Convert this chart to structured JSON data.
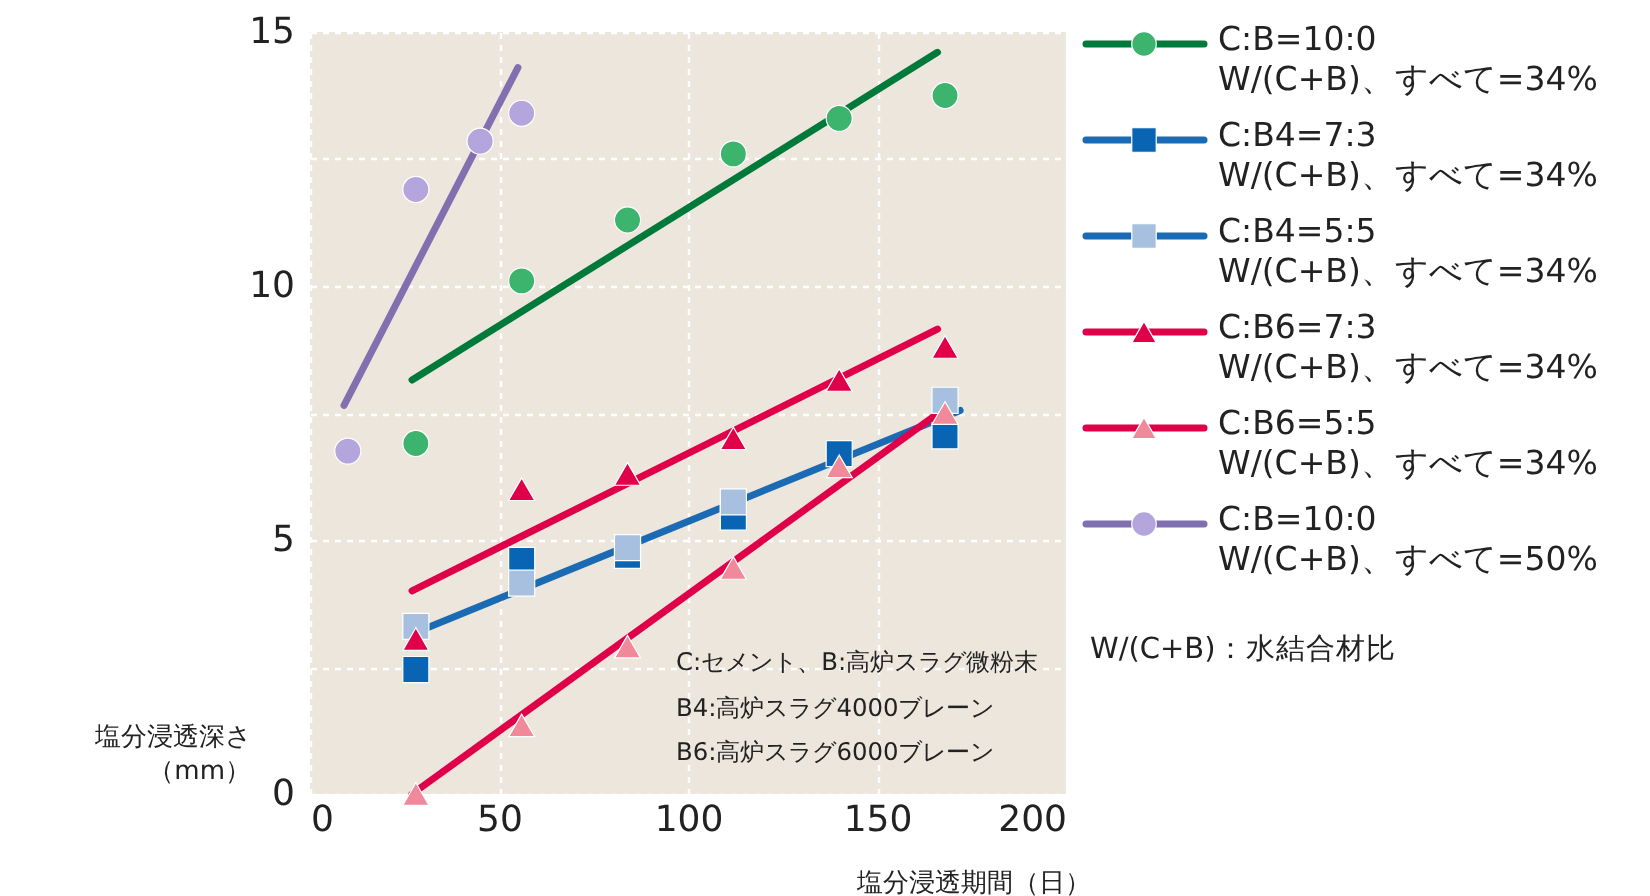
{
  "chart_data": {
    "type": "scatter",
    "xlabel": "塩分浸透期間（日）",
    "ylabel": "塩分浸透深さ（mm）",
    "xlim": [
      0,
      200
    ],
    "xticks": [
      0,
      50,
      100,
      150,
      200
    ],
    "ylim": [
      0,
      15
    ],
    "yticks": [
      0,
      {
        "value": 2.5,
        "label": null
      },
      5,
      {
        "value": 7.5,
        "label": null
      },
      10,
      {
        "value": 12.5,
        "label": null
      },
      15
    ],
    "grid": true,
    "legend": "right",
    "annotations": [
      "C:セメント、B:高炉スラグ微粉末",
      "B4:高炉スラグ4000ブレーン",
      "B6:高炉スラグ6000ブレーン",
      "W/(C+B)：水結合材比"
    ],
    "series": [
      {
        "name": "C:B=10:0\nW/(C+B)、すべて=34%",
        "color": "#3cb46e",
        "marker": "circle",
        "x": [
          28,
          56,
          84,
          112,
          140,
          168
        ],
        "values": [
          6.9,
          10.1,
          11.3,
          12.6,
          13.3,
          13.75
        ]
      },
      {
        "name": "C:B4=7:3\nW/(C+B)、すべて=34%",
        "color": "#0a64b4",
        "marker": "square",
        "x": [
          28,
          56,
          84,
          112,
          140,
          168
        ],
        "values": [
          2.45,
          4.6,
          4.7,
          5.45,
          6.7,
          7.05
        ]
      },
      {
        "name": "C:B4=5:5\nW/(C+B)、すべて=34%",
        "color": "#a8c0e0",
        "marker": "square",
        "x": [
          28,
          56,
          84,
          112,
          140,
          168
        ],
        "values": [
          3.3,
          4.15,
          4.85,
          5.75,
          null,
          7.75
        ]
      },
      {
        "name": "C:B6=7:3\nW/(C+B)、すべて=34%",
        "color": "#e0004a",
        "marker": "triangle",
        "x": [
          28,
          56,
          84,
          112,
          140,
          168
        ],
        "values": [
          3.05,
          6.0,
          6.3,
          7.0,
          8.15,
          8.8
        ]
      },
      {
        "name": "C:B6=5:5\nW/(C+B)、すべて=34%",
        "color": "#f08a9a",
        "marker": "triangle",
        "x": [
          28,
          56,
          84,
          112,
          140,
          168
        ],
        "values": [
          0,
          1.35,
          2.9,
          4.45,
          6.45,
          7.5
        ]
      },
      {
        "name": "C:B=10:0\nW/(C+B)、すべて=50%",
        "color": "#b4a6dc",
        "marker": "circle",
        "x": [
          10,
          28,
          45,
          56
        ],
        "values": [
          6.75,
          11.9,
          12.85,
          13.4
        ]
      },
      {
        "type": "line",
        "color": "#007a3a",
        "x": [
          27,
          166
        ],
        "values": [
          8.15,
          14.6
        ]
      },
      {
        "type": "line",
        "color": "#1a6ab4",
        "x": [
          27,
          172
        ],
        "values": [
          3.15,
          7.55
        ]
      },
      {
        "type": "line",
        "color": "#e0004a",
        "x": [
          27,
          166
        ],
        "values": [
          4.0,
          9.15
        ]
      },
      {
        "type": "line",
        "color": "#e0004a",
        "x": [
          27,
          170
        ],
        "values": [
          0,
          7.7
        ]
      },
      {
        "type": "line",
        "color": "#8070b0",
        "x": [
          9,
          55
        ],
        "values": [
          7.65,
          14.3
        ]
      }
    ]
  }
}
